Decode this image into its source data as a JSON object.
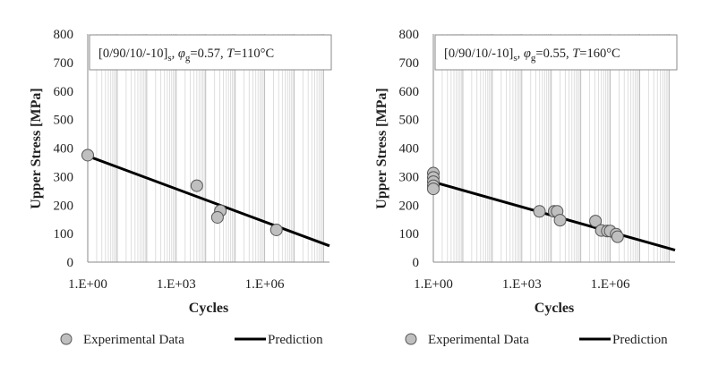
{
  "chart_data": [
    {
      "type": "scatter",
      "title": "",
      "annotation": {
        "layup": "[0/90/10/-10]",
        "layup_sub": "s",
        "phi_sym": "φ",
        "phi_sub": "g",
        "phi_value": "=0.57, ",
        "t_sym": "T",
        "t_value": "=110°C"
      },
      "xlabel": "Cycles",
      "ylabel": "Upper Stress [MPa]",
      "xscale": "log",
      "xlim_log10": [
        0,
        8.2
      ],
      "ylim": [
        0,
        800
      ],
      "yticks": [
        0,
        100,
        200,
        300,
        400,
        500,
        600,
        700,
        800
      ],
      "xtick_labels": [
        {
          "log10": 0,
          "label": "1.E+00"
        },
        {
          "log10": 3,
          "label": "1.E+03"
        },
        {
          "log10": 6,
          "label": "1.E+06"
        }
      ],
      "grid": "vertical minor log gridlines",
      "series": [
        {
          "name": "Experimental Data",
          "kind": "points",
          "color": "#bfbfbf",
          "edge": "#555555",
          "points": [
            {
              "log10_cycles": 0.0,
              "stress": 375
            },
            {
              "log10_cycles": 3.7,
              "stress": 268
            },
            {
              "log10_cycles": 4.5,
              "stress": 180
            },
            {
              "log10_cycles": 4.4,
              "stress": 157
            },
            {
              "log10_cycles": 6.4,
              "stress": 113
            }
          ]
        },
        {
          "name": "Prediction",
          "kind": "line",
          "color": "#000000",
          "points": [
            {
              "log10_cycles": 0.0,
              "stress": 372
            },
            {
              "log10_cycles": 8.2,
              "stress": 57
            }
          ]
        }
      ],
      "legend": {
        "placement": "bottom",
        "items": [
          "Experimental Data",
          "Prediction"
        ]
      }
    },
    {
      "type": "scatter",
      "title": "",
      "annotation": {
        "layup": "[0/90/10/-10]",
        "layup_sub": "s",
        "phi_sym": "φ",
        "phi_sub": "g",
        "phi_value": "=0.55, ",
        "t_sym": "T",
        "t_value": "=160°C"
      },
      "xlabel": "Cycles",
      "ylabel": "Upper Stress [MPa]",
      "xscale": "log",
      "xlim_log10": [
        0,
        8.2
      ],
      "ylim": [
        0,
        800
      ],
      "yticks": [
        0,
        100,
        200,
        300,
        400,
        500,
        600,
        700,
        800
      ],
      "xtick_labels": [
        {
          "log10": 0,
          "label": "1.E+00"
        },
        {
          "log10": 3,
          "label": "1.E+03"
        },
        {
          "log10": 6,
          "label": "1.E+06"
        }
      ],
      "grid": "vertical minor log gridlines",
      "series": [
        {
          "name": "Experimental Data",
          "kind": "points",
          "color": "#bfbfbf",
          "edge": "#555555",
          "points": [
            {
              "log10_cycles": 0.0,
              "stress": 312
            },
            {
              "log10_cycles": 0.0,
              "stress": 297
            },
            {
              "log10_cycles": 0.0,
              "stress": 282
            },
            {
              "log10_cycles": 0.0,
              "stress": 268
            },
            {
              "log10_cycles": 0.0,
              "stress": 257
            },
            {
              "log10_cycles": 3.6,
              "stress": 178
            },
            {
              "log10_cycles": 4.1,
              "stress": 178
            },
            {
              "log10_cycles": 4.2,
              "stress": 178
            },
            {
              "log10_cycles": 4.3,
              "stress": 147
            },
            {
              "log10_cycles": 5.5,
              "stress": 144
            },
            {
              "log10_cycles": 5.7,
              "stress": 111
            },
            {
              "log10_cycles": 5.9,
              "stress": 109
            },
            {
              "log10_cycles": 6.0,
              "stress": 109
            },
            {
              "log10_cycles": 6.2,
              "stress": 98
            },
            {
              "log10_cycles": 6.25,
              "stress": 89
            }
          ]
        },
        {
          "name": "Prediction",
          "kind": "line",
          "color": "#000000",
          "points": [
            {
              "log10_cycles": 0.0,
              "stress": 281
            },
            {
              "log10_cycles": 8.2,
              "stress": 42
            }
          ]
        }
      ],
      "legend": {
        "placement": "bottom",
        "items": [
          "Experimental Data",
          "Prediction"
        ]
      }
    }
  ]
}
